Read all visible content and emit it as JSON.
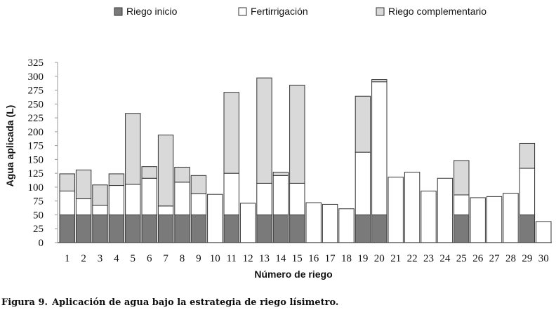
{
  "chart_data": {
    "type": "bar",
    "stacked": true,
    "categories": [
      "1",
      "2",
      "3",
      "4",
      "5",
      "6",
      "7",
      "8",
      "9",
      "10",
      "11",
      "12",
      "13",
      "14",
      "15",
      "16",
      "17",
      "18",
      "19",
      "20",
      "21",
      "22",
      "23",
      "24",
      "25",
      "26",
      "27",
      "28",
      "29",
      "30"
    ],
    "series": [
      {
        "name": "Riego inicio",
        "color": "#7a7a7a",
        "values": [
          50,
          50,
          50,
          50,
          50,
          50,
          50,
          50,
          50,
          0,
          50,
          0,
          50,
          50,
          50,
          0,
          0,
          0,
          50,
          50,
          0,
          0,
          0,
          0,
          50,
          0,
          0,
          0,
          50,
          0
        ]
      },
      {
        "name": "Fertirrigación",
        "color": "#ffffff",
        "values": [
          43,
          29,
          17,
          53,
          55,
          66,
          16,
          59,
          38,
          87,
          75,
          71,
          57,
          71,
          57,
          72,
          69,
          61,
          113,
          240,
          118,
          127,
          93,
          116,
          36,
          81,
          83,
          89,
          84,
          38
        ]
      },
      {
        "name": "Riego complementario",
        "color": "#d9d9d9",
        "values": [
          31,
          52,
          37,
          21,
          128,
          21,
          128,
          27,
          33,
          0,
          146,
          0,
          190,
          6,
          177,
          0,
          0,
          0,
          101,
          4,
          0,
          0,
          0,
          0,
          62,
          0,
          0,
          0,
          45,
          0
        ]
      }
    ],
    "ylabel": "Agua aplicada (L)",
    "xlabel": "Número de riego",
    "ylim": [
      0,
      325
    ],
    "yticks": [
      0,
      25,
      50,
      75,
      100,
      125,
      150,
      175,
      200,
      225,
      250,
      275,
      300,
      325
    ],
    "legend_position": "top"
  },
  "caption": {
    "number": "Figura 9.",
    "text": "Aplicación de agua bajo la estrategia de riego lísimetro."
  }
}
